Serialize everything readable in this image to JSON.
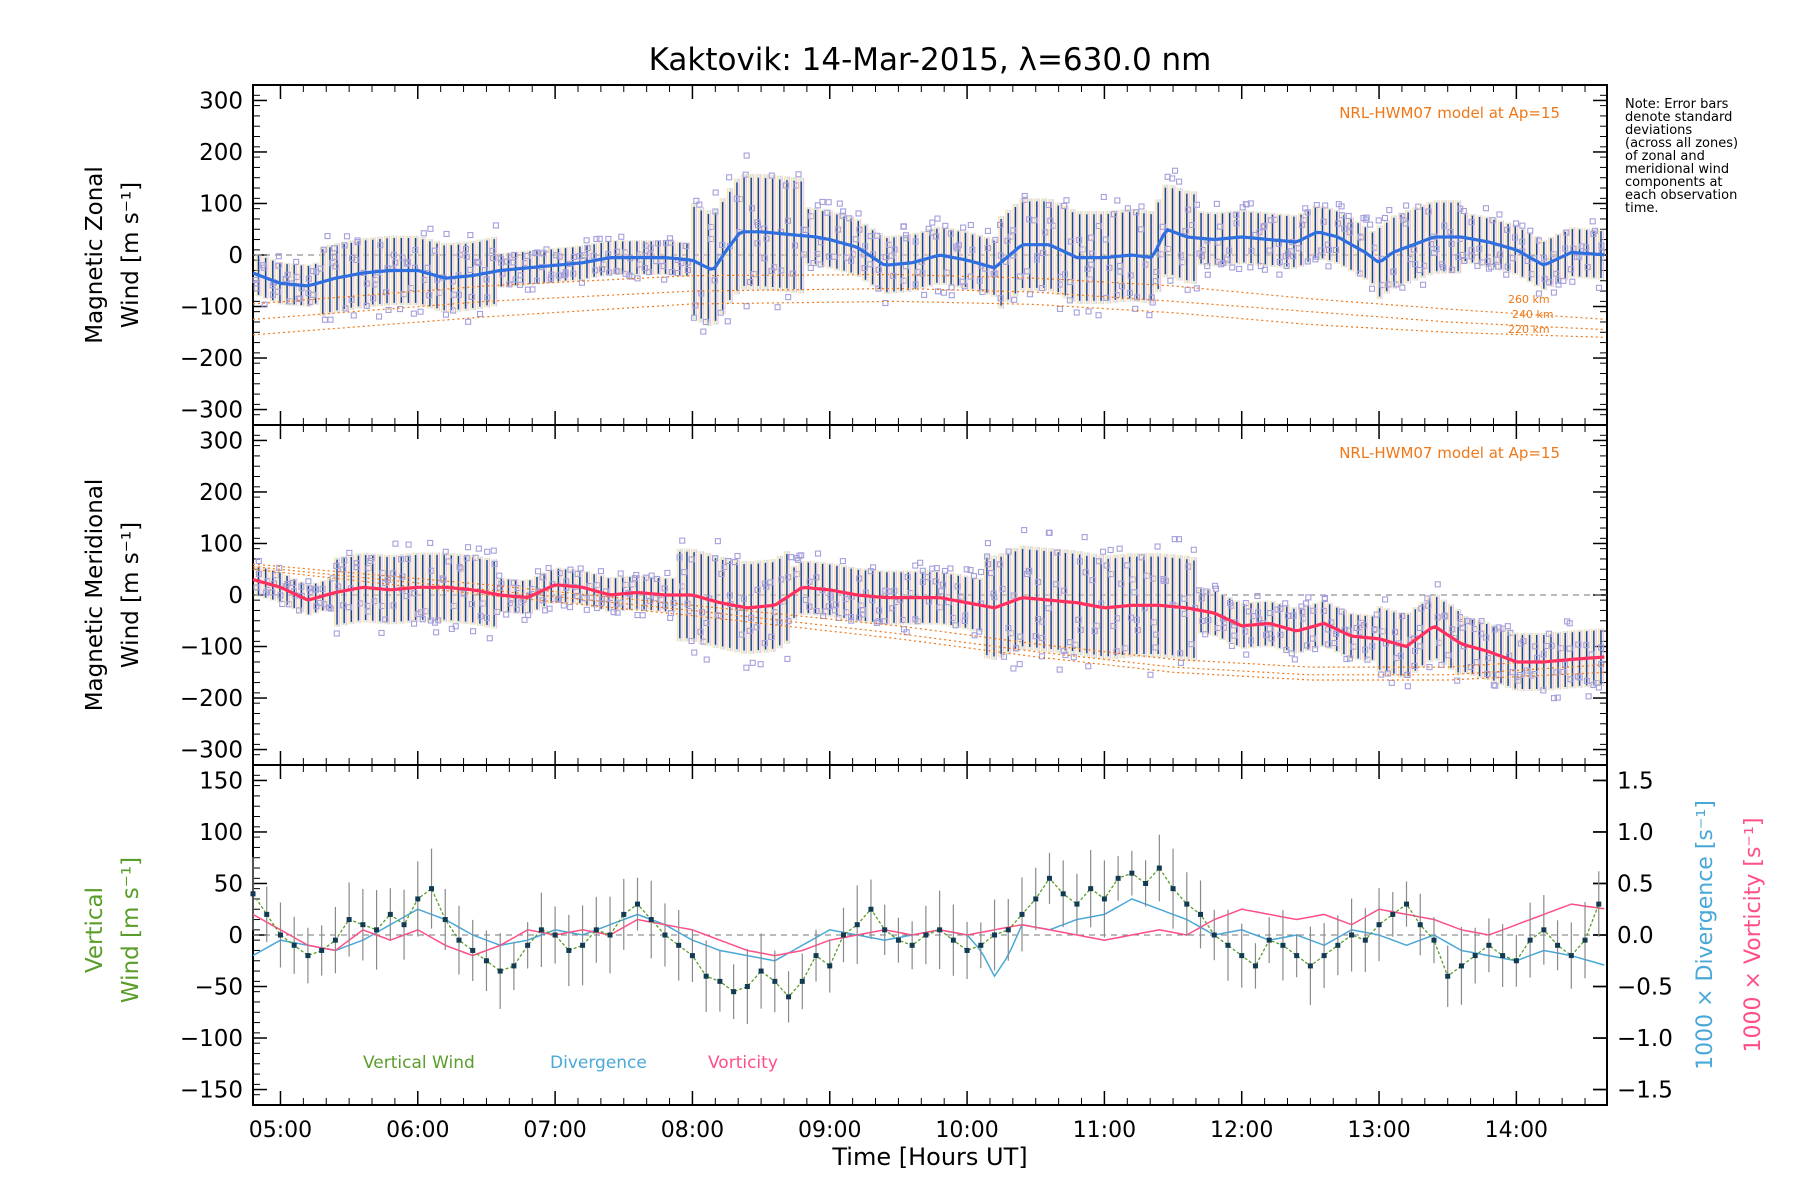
{
  "title": "Kaktovik: 14-Mar-2015, λ=630.0 nm",
  "note": "Note: Error bars\ndenote standard\ndeviations\n(across all zones)\nof zonal and\nmeridional wind\ncomponents at\neach observation\ntime.",
  "colors": {
    "zonal_mean": "#2f6fdf",
    "meridional_mean": "#ff3060",
    "vertical": "#5a9e2a",
    "divergence": "#4aa8d8",
    "vorticity": "#ff4f86",
    "model": "#f07818",
    "zone_scatter": "#a4a0dc",
    "error_bar": "#1f3f8f",
    "vertical_err": "#8a8a8a",
    "vertical_point": "#123a52"
  },
  "chart_data": [
    {
      "type": "line",
      "panel": "zonal",
      "ylabel_line1": "Magnetic Zonal",
      "ylabel_line2": "Wind [m s⁻¹]",
      "ylim": [
        -330,
        330
      ],
      "yticks": [
        -300,
        -200,
        -100,
        0,
        100,
        200,
        300
      ],
      "xlim": [
        4.8,
        14.66
      ],
      "model_label": "NRL-HWM07 model at Ap=15",
      "model_altitude_labels": [
        "260 km",
        "240 km",
        "220 km"
      ],
      "mean_series": {
        "name": "",
        "x": [
          4.8,
          5.0,
          5.2,
          5.4,
          5.6,
          5.8,
          6.0,
          6.2,
          6.4,
          6.6,
          6.8,
          7.0,
          7.2,
          7.4,
          7.6,
          7.8,
          8.0,
          8.15,
          8.25,
          8.35,
          8.5,
          8.7,
          8.9,
          9.0,
          9.2,
          9.4,
          9.6,
          9.8,
          10.0,
          10.2,
          10.4,
          10.6,
          10.8,
          11.0,
          11.2,
          11.35,
          11.45,
          11.6,
          11.8,
          12.0,
          12.2,
          12.4,
          12.55,
          12.7,
          12.9,
          13.0,
          13.1,
          13.2,
          13.4,
          13.6,
          13.8,
          14.0,
          14.2,
          14.4,
          14.66
        ],
        "y": [
          -35,
          -55,
          -60,
          -45,
          -35,
          -30,
          -30,
          -45,
          -40,
          -30,
          -25,
          -20,
          -15,
          -5,
          -5,
          -5,
          -10,
          -30,
          10,
          45,
          45,
          40,
          35,
          30,
          15,
          -20,
          -15,
          0,
          -10,
          -25,
          20,
          20,
          -5,
          -5,
          0,
          -5,
          50,
          35,
          30,
          35,
          30,
          25,
          45,
          35,
          5,
          -15,
          5,
          15,
          35,
          35,
          25,
          10,
          -20,
          5,
          0
        ]
      },
      "model_series": [
        {
          "name": "260 km",
          "x": [
            4.8,
            6.5,
            8.0,
            9.5,
            10.5,
            11.5,
            12.5,
            13.5,
            14.66
          ],
          "y": [
            -95,
            -60,
            -40,
            -38,
            -45,
            -60,
            -85,
            -105,
            -125
          ]
        },
        {
          "name": "240 km",
          "x": [
            4.8,
            6.5,
            8.0,
            9.5,
            10.5,
            11.5,
            12.5,
            13.5,
            14.66
          ],
          "y": [
            -125,
            -90,
            -70,
            -65,
            -72,
            -90,
            -110,
            -130,
            -145
          ]
        },
        {
          "name": "220 km",
          "x": [
            4.8,
            6.5,
            8.0,
            9.5,
            10.5,
            11.5,
            12.5,
            13.5,
            14.66
          ],
          "y": [
            -155,
            -120,
            -95,
            -90,
            -96,
            -112,
            -135,
            -150,
            -160
          ]
        }
      ],
      "spread": [
        {
          "x0": 4.8,
          "x1": 5.3,
          "sd": 55
        },
        {
          "x0": 5.3,
          "x1": 6.6,
          "sd": 90
        },
        {
          "x0": 6.6,
          "x1": 8.0,
          "sd": 45
        },
        {
          "x0": 8.0,
          "x1": 8.8,
          "sd": 150
        },
        {
          "x0": 8.8,
          "x1": 10.2,
          "sd": 75
        },
        {
          "x0": 10.2,
          "x1": 11.7,
          "sd": 120
        },
        {
          "x0": 11.7,
          "x1": 13.0,
          "sd": 70
        },
        {
          "x0": 13.0,
          "x1": 13.6,
          "sd": 95
        },
        {
          "x0": 13.6,
          "x1": 14.66,
          "sd": 65
        }
      ]
    },
    {
      "type": "line",
      "panel": "meridional",
      "ylabel_line1": "Magnetic Meridional",
      "ylabel_line2": "Wind [m s⁻¹]",
      "ylim": [
        -330,
        330
      ],
      "yticks": [
        -300,
        -200,
        -100,
        0,
        100,
        200,
        300
      ],
      "xlim": [
        4.8,
        14.66
      ],
      "model_label": "NRL-HWM07 model at Ap=15",
      "mean_series": {
        "name": "",
        "x": [
          4.8,
          5.0,
          5.2,
          5.4,
          5.6,
          5.8,
          6.0,
          6.2,
          6.4,
          6.6,
          6.8,
          7.0,
          7.2,
          7.4,
          7.6,
          7.8,
          8.0,
          8.2,
          8.4,
          8.6,
          8.8,
          9.0,
          9.2,
          9.4,
          9.6,
          9.8,
          10.0,
          10.2,
          10.4,
          10.6,
          10.8,
          11.0,
          11.2,
          11.4,
          11.6,
          11.8,
          12.0,
          12.2,
          12.4,
          12.6,
          12.8,
          13.0,
          13.2,
          13.4,
          13.6,
          13.8,
          14.0,
          14.2,
          14.4,
          14.66
        ],
        "y": [
          30,
          15,
          -10,
          5,
          15,
          10,
          15,
          15,
          10,
          0,
          -5,
          20,
          15,
          0,
          5,
          0,
          0,
          -15,
          -25,
          -20,
          15,
          10,
          0,
          -5,
          -5,
          -5,
          -15,
          -25,
          -5,
          -10,
          -15,
          -25,
          -20,
          -20,
          -25,
          -35,
          -60,
          -55,
          -70,
          -55,
          -80,
          -85,
          -100,
          -60,
          -95,
          -110,
          -130,
          -130,
          -125,
          -120
        ]
      },
      "model_series": [
        {
          "name": "260 km",
          "x": [
            4.8,
            6.5,
            8.0,
            9.5,
            10.5,
            11.5,
            12.5,
            13.5,
            14.66
          ],
          "y": [
            60,
            20,
            -20,
            -60,
            -95,
            -125,
            -140,
            -140,
            -120
          ]
        },
        {
          "name": "240 km",
          "x": [
            4.8,
            6.5,
            8.0,
            9.5,
            10.5,
            11.5,
            12.5,
            13.5,
            14.66
          ],
          "y": [
            55,
            10,
            -30,
            -75,
            -110,
            -140,
            -155,
            -155,
            -135
          ]
        },
        {
          "name": "220 km",
          "x": [
            4.8,
            6.5,
            8.0,
            9.5,
            10.5,
            11.5,
            12.5,
            13.5,
            14.66
          ],
          "y": [
            50,
            0,
            -40,
            -85,
            -120,
            -150,
            -165,
            -165,
            -150
          ]
        }
      ],
      "spread": [
        {
          "x0": 4.8,
          "x1": 5.4,
          "sd": 40
        },
        {
          "x0": 5.4,
          "x1": 6.6,
          "sd": 90
        },
        {
          "x0": 6.6,
          "x1": 7.9,
          "sd": 45
        },
        {
          "x0": 7.9,
          "x1": 8.7,
          "sd": 120
        },
        {
          "x0": 8.7,
          "x1": 10.1,
          "sd": 70
        },
        {
          "x0": 10.1,
          "x1": 11.7,
          "sd": 135
        },
        {
          "x0": 11.7,
          "x1": 13.0,
          "sd": 60
        },
        {
          "x0": 13.0,
          "x1": 13.6,
          "sd": 85
        },
        {
          "x0": 13.6,
          "x1": 14.66,
          "sd": 75
        }
      ]
    },
    {
      "type": "line",
      "panel": "vertical",
      "ylabel_line1": "Vertical",
      "ylabel_line2": "Wind [m s⁻¹]",
      "right_label_1": "1000 × Divergence [s⁻¹]",
      "right_label_2": "1000 × Vorticity [s⁻¹]",
      "ylim": [
        -165,
        165
      ],
      "yticks": [
        -150,
        -100,
        -50,
        0,
        50,
        100,
        150
      ],
      "y2lim": [
        -1.65,
        1.65
      ],
      "y2ticks": [
        -1.5,
        -1.0,
        -0.5,
        0.0,
        0.5,
        1.0,
        1.5
      ],
      "y2ticklabels": [
        "−1.5",
        "−1.0",
        "−0.5",
        "0.0",
        "0.5",
        "1.0",
        "1.5"
      ],
      "xlim": [
        4.8,
        14.66
      ],
      "xticks": [
        5,
        6,
        7,
        8,
        9,
        10,
        11,
        12,
        13,
        14
      ],
      "xticklabels": [
        "05:00",
        "06:00",
        "07:00",
        "08:00",
        "09:00",
        "10:00",
        "11:00",
        "12:00",
        "13:00",
        "14:00"
      ],
      "xlabel": "Time [Hours UT]",
      "legend": [
        "Vertical Wind",
        "Divergence",
        "Vorticity"
      ],
      "series": [
        {
          "name": "Vertical Wind",
          "x": [
            4.8,
            4.9,
            5.0,
            5.1,
            5.2,
            5.3,
            5.4,
            5.5,
            5.6,
            5.7,
            5.8,
            5.9,
            6.0,
            6.1,
            6.2,
            6.3,
            6.4,
            6.5,
            6.6,
            6.7,
            6.8,
            6.9,
            7.0,
            7.1,
            7.2,
            7.3,
            7.4,
            7.5,
            7.6,
            7.7,
            7.8,
            7.9,
            8.0,
            8.1,
            8.2,
            8.3,
            8.4,
            8.5,
            8.6,
            8.7,
            8.8,
            8.9,
            9.0,
            9.1,
            9.2,
            9.3,
            9.4,
            9.5,
            9.6,
            9.7,
            9.8,
            9.9,
            10.0,
            10.1,
            10.2,
            10.3,
            10.4,
            10.5,
            10.6,
            10.7,
            10.8,
            10.9,
            11.0,
            11.1,
            11.2,
            11.3,
            11.4,
            11.5,
            11.6,
            11.7,
            11.8,
            11.9,
            12.0,
            12.1,
            12.2,
            12.3,
            12.4,
            12.5,
            12.6,
            12.7,
            12.8,
            12.9,
            13.0,
            13.1,
            13.2,
            13.3,
            13.4,
            13.5,
            13.6,
            13.7,
            13.8,
            13.9,
            14.0,
            14.1,
            14.2,
            14.3,
            14.4,
            14.5,
            14.6
          ],
          "y": [
            40,
            20,
            0,
            -10,
            -20,
            -15,
            -5,
            15,
            10,
            5,
            20,
            10,
            35,
            45,
            15,
            -5,
            -15,
            -25,
            -35,
            -30,
            -10,
            5,
            0,
            -15,
            -10,
            5,
            0,
            20,
            30,
            15,
            0,
            -10,
            -20,
            -40,
            -45,
            -55,
            -50,
            -35,
            -45,
            -60,
            -45,
            -20,
            -30,
            0,
            10,
            25,
            5,
            -5,
            -10,
            0,
            5,
            -5,
            -15,
            -10,
            0,
            5,
            20,
            35,
            55,
            40,
            30,
            45,
            35,
            55,
            60,
            50,
            65,
            45,
            30,
            20,
            0,
            -10,
            -20,
            -30,
            -5,
            -10,
            -20,
            -30,
            -20,
            -10,
            0,
            -5,
            10,
            20,
            30,
            10,
            -5,
            -40,
            -30,
            -20,
            -10,
            -20,
            -25,
            -5,
            5,
            -10,
            -20,
            -5,
            30
          ]
        },
        {
          "name": "Divergence",
          "x": [
            4.8,
            5.0,
            5.2,
            5.4,
            5.6,
            5.8,
            6.0,
            6.2,
            6.4,
            6.6,
            6.8,
            7.0,
            7.2,
            7.4,
            7.6,
            7.8,
            8.0,
            8.2,
            8.4,
            8.6,
            8.8,
            9.0,
            9.2,
            9.4,
            9.6,
            9.8,
            10.0,
            10.1,
            10.2,
            10.3,
            10.4,
            10.6,
            10.8,
            11.0,
            11.2,
            11.4,
            11.6,
            11.8,
            12.0,
            12.2,
            12.4,
            12.6,
            12.8,
            13.0,
            13.2,
            13.4,
            13.6,
            13.8,
            14.0,
            14.2,
            14.4,
            14.66
          ],
          "y": [
            -0.2,
            -0.05,
            -0.1,
            -0.15,
            -0.05,
            0.1,
            0.25,
            0.15,
            0.0,
            -0.1,
            -0.05,
            0.05,
            0.0,
            0.1,
            0.2,
            0.1,
            -0.05,
            -0.15,
            -0.2,
            -0.25,
            -0.1,
            0.05,
            0.0,
            -0.05,
            0.0,
            0.05,
            0.0,
            -0.15,
            -0.4,
            -0.2,
            0.1,
            0.05,
            0.15,
            0.2,
            0.35,
            0.25,
            0.15,
            0.0,
            0.05,
            -0.05,
            0.0,
            -0.1,
            0.05,
            0.0,
            -0.1,
            0.0,
            -0.15,
            -0.2,
            -0.25,
            -0.15,
            -0.2,
            -0.3
          ]
        },
        {
          "name": "Vorticity",
          "x": [
            4.8,
            5.0,
            5.2,
            5.4,
            5.6,
            5.8,
            6.0,
            6.2,
            6.4,
            6.6,
            6.8,
            7.0,
            7.2,
            7.4,
            7.6,
            7.8,
            8.0,
            8.2,
            8.4,
            8.6,
            8.8,
            9.0,
            9.2,
            9.4,
            9.6,
            9.8,
            10.0,
            10.2,
            10.4,
            10.6,
            10.8,
            11.0,
            11.2,
            11.4,
            11.6,
            11.8,
            12.0,
            12.2,
            12.4,
            12.6,
            12.8,
            13.0,
            13.2,
            13.4,
            13.6,
            13.8,
            14.0,
            14.2,
            14.4,
            14.66
          ],
          "y": [
            0.2,
            0.05,
            -0.1,
            -0.15,
            0.05,
            -0.05,
            0.05,
            -0.1,
            -0.2,
            -0.1,
            0.05,
            0.0,
            0.05,
            0.0,
            0.15,
            0.1,
            0.05,
            -0.05,
            -0.15,
            -0.2,
            -0.15,
            -0.05,
            0.0,
            0.05,
            0.0,
            0.05,
            0.0,
            0.05,
            0.1,
            0.05,
            0.0,
            -0.05,
            0.0,
            0.05,
            0.0,
            0.15,
            0.25,
            0.2,
            0.15,
            0.2,
            0.1,
            0.25,
            0.2,
            0.15,
            0.05,
            0.0,
            0.1,
            0.2,
            0.3,
            0.25
          ]
        }
      ],
      "vertical_error": 30
    }
  ]
}
